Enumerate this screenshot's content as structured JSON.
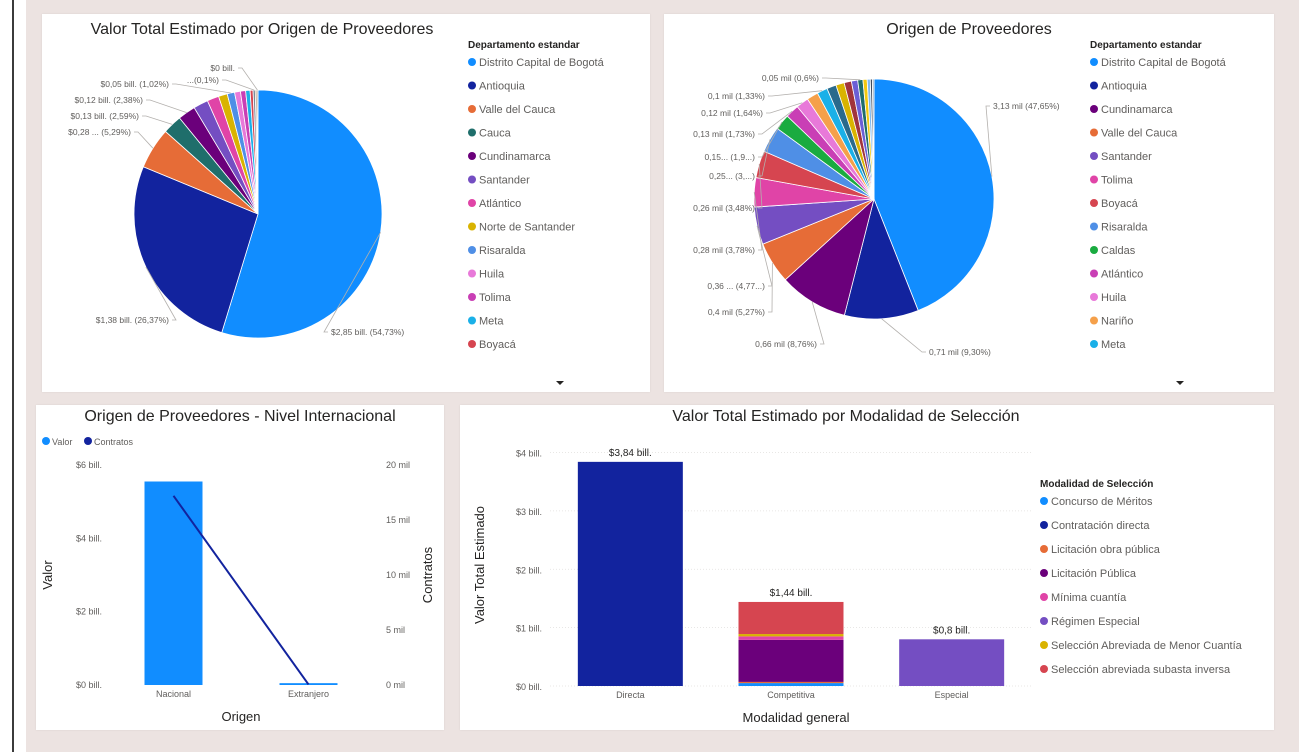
{
  "chart_data": [
    {
      "id": "pie_valor",
      "type": "pie",
      "title": "Valor Total Estimado por Origen de Proveedores",
      "legend_title": "Departamento estandar",
      "slices": [
        {
          "name": "Distrito Capital de Bogotá",
          "value": 2.85,
          "label": "$2,85 bill. (54,73%)",
          "color": "#118dff"
        },
        {
          "name": "Antioquia",
          "value": 1.38,
          "label": "$1,38 bill. (26,37%)",
          "color": "#12239e"
        },
        {
          "name": "Valle del Cauca",
          "value": 0.28,
          "label": "$0,28 ... (5,29%)",
          "color": "#e66c37"
        },
        {
          "name": "Cauca",
          "value": 0.13,
          "label": "$0,13 bill. (2,59%)",
          "color": "#1f6e6b"
        },
        {
          "name": "Cundinamarca",
          "value": 0.12,
          "label": "$0,12 bill. (2,38%)",
          "color": "#6b007b"
        },
        {
          "name": "Santander",
          "value": 0.1,
          "label": "",
          "color": "#744ec2"
        },
        {
          "name": "Atlántico",
          "value": 0.08,
          "label": "",
          "color": "#e044a7"
        },
        {
          "name": "Norte de Santander",
          "value": 0.06,
          "label": "",
          "color": "#d9b300"
        },
        {
          "name": "Risaralda",
          "value": 0.05,
          "label": "$0,05 bill. (1,02%)",
          "color": "#4f8fe6"
        },
        {
          "name": "Huila",
          "value": 0.04,
          "label": "",
          "color": "#e879d9"
        },
        {
          "name": "Tolima",
          "value": 0.035,
          "label": "",
          "color": "#c93fb5"
        },
        {
          "name": "Meta",
          "value": 0.03,
          "label": "",
          "color": "#1ab0e8"
        },
        {
          "name": "Boyacá",
          "value": 0.02,
          "label": "",
          "color": "#d64550"
        },
        {
          "name": "",
          "value": 0.015,
          "label": "...(0,1%)",
          "color": "#7a8a99"
        },
        {
          "name": "",
          "value": 0.01,
          "label": "",
          "color": "#a67c52"
        },
        {
          "name": "",
          "value": 0.008,
          "label": "$0 bill.",
          "color": "#8c8c8c"
        }
      ]
    },
    {
      "id": "pie_contratos",
      "type": "pie",
      "title": "Origen de Proveedores",
      "legend_title": "Departamento estandar",
      "slices": [
        {
          "name": "Distrito Capital de Bogotá",
          "value": 3.13,
          "label": "3,13 mil (47,65%)",
          "color": "#118dff"
        },
        {
          "name": "Antioquia",
          "value": 0.71,
          "label": "0,71 mil (9,30%)",
          "color": "#12239e"
        },
        {
          "name": "Cundinamarca",
          "value": 0.66,
          "label": "0,66 mil (8,76%)",
          "color": "#6b007b"
        },
        {
          "name": "Valle del Cauca",
          "value": 0.4,
          "label": "0,4 mil (5,27%)",
          "color": "#e66c37"
        },
        {
          "name": "Santander",
          "value": 0.36,
          "label": "0,36 ... (4,77...)",
          "color": "#744ec2"
        },
        {
          "name": "Tolima",
          "value": 0.28,
          "label": "0,28 mil (3,78%)",
          "color": "#e044a7"
        },
        {
          "name": "Boyacá",
          "value": 0.26,
          "label": "0,26 mil (3,48%)",
          "color": "#d64550"
        },
        {
          "name": "Risaralda",
          "value": 0.25,
          "label": "0,25... (3,...)",
          "color": "#4f8fe6"
        },
        {
          "name": "Caldas",
          "value": 0.15,
          "label": "0,15... (1,9...)",
          "color": "#1aab40"
        },
        {
          "name": "Atlántico",
          "value": 0.13,
          "label": "0,13 mil (1,73%)",
          "color": "#c93fb5"
        },
        {
          "name": "Huila",
          "value": 0.12,
          "label": "0,12 mil (1,64%)",
          "color": "#e879d9"
        },
        {
          "name": "Nariño",
          "value": 0.11,
          "label": "",
          "color": "#f5a04a"
        },
        {
          "name": "Meta",
          "value": 0.1,
          "label": "0,1 mil (1,33%)",
          "color": "#1ab0e8"
        },
        {
          "name": "",
          "value": 0.09,
          "label": "",
          "color": "#2a6a8c"
        },
        {
          "name": "",
          "value": 0.08,
          "label": "",
          "color": "#d9b300"
        },
        {
          "name": "",
          "value": 0.07,
          "label": "",
          "color": "#a1343c"
        },
        {
          "name": "",
          "value": 0.06,
          "label": "",
          "color": "#6b5fd6"
        },
        {
          "name": "",
          "value": 0.05,
          "label": "0,05 mil (0,6%)",
          "color": "#1f6e6b"
        },
        {
          "name": "",
          "value": 0.04,
          "label": "",
          "color": "#f2c80f"
        },
        {
          "name": "",
          "value": 0.03,
          "label": "",
          "color": "#7fbaf0"
        },
        {
          "name": "",
          "value": 0.02,
          "label": "",
          "color": "#3d4a5c"
        },
        {
          "name": "",
          "value": 0.015,
          "label": "",
          "color": "#8aa0b8"
        }
      ]
    },
    {
      "id": "combo_internacional",
      "type": "bar",
      "title": "Origen de Proveedores - Nivel Internacional",
      "legend": [
        "Valor",
        "Contratos"
      ],
      "xlabel": "Origen",
      "ylabel": "Valor",
      "y2label": "Contratos",
      "categories": [
        "Nacional",
        "Extranjero"
      ],
      "series": [
        {
          "name": "Valor",
          "kind": "bar",
          "values": [
            5.55,
            0.05
          ],
          "color": "#118dff"
        },
        {
          "name": "Contratos",
          "kind": "line",
          "values": [
            17.2,
            0.05
          ],
          "color": "#12239e"
        }
      ],
      "ylim": [
        0,
        6
      ],
      "yticks": [
        "$0 bill.",
        "$2 bill.",
        "$4 bill.",
        "$6 bill."
      ],
      "y2lim": [
        0,
        20
      ],
      "y2ticks": [
        "0 mil",
        "5 mil",
        "10 mil",
        "15 mil",
        "20 mil"
      ]
    },
    {
      "id": "stacked_modalidad",
      "type": "bar",
      "title": "Valor Total Estimado por Modalidad de Selección",
      "xlabel": "Modalidad general",
      "ylabel": "Valor Total Estimado",
      "legend_title": "Modalidad de Selección",
      "categories": [
        "Directa",
        "Competitiva",
        "Especial"
      ],
      "totals": [
        "$3,84 bill.",
        "$1,44 bill.",
        "$0,8 bill."
      ],
      "ylim": [
        0,
        4.3
      ],
      "yticks": [
        "$0 bill.",
        "$1 bill.",
        "$2 bill.",
        "$3 bill.",
        "$4 bill."
      ],
      "series": [
        {
          "name": "Concurso de Méritos",
          "values": [
            0,
            0.05,
            0
          ],
          "color": "#118dff"
        },
        {
          "name": "Contratación directa",
          "values": [
            3.84,
            0,
            0
          ],
          "color": "#12239e"
        },
        {
          "name": "Licitación obra pública",
          "values": [
            0,
            0.02,
            0
          ],
          "color": "#e66c37"
        },
        {
          "name": "Licitación Pública",
          "values": [
            0,
            0.72,
            0
          ],
          "color": "#6b007b"
        },
        {
          "name": "Mínima cuantía",
          "values": [
            0,
            0.06,
            0
          ],
          "color": "#e044a7"
        },
        {
          "name": "Régimen Especial",
          "values": [
            0,
            0,
            0.8
          ],
          "color": "#744ec2"
        },
        {
          "name": "Selección Abreviada de Menor Cuantía",
          "values": [
            0,
            0.04,
            0
          ],
          "color": "#d9b300"
        },
        {
          "name": "Selección abreviada subasta inversa",
          "values": [
            0,
            0.55,
            0
          ],
          "color": "#d64550"
        }
      ]
    }
  ]
}
